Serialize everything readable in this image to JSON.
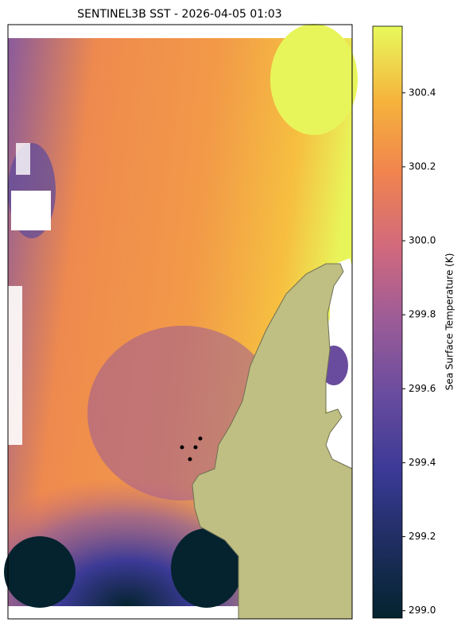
{
  "chart_data": {
    "type": "heatmap",
    "title": "SENTINEL3B SST - 2026-04-05 01:03",
    "ylabel": "Sea Surface Temperature (K)",
    "ylim": [
      298.98,
      300.58
    ],
    "yticks": [
      {
        "value": 299.0,
        "label": "299.0"
      },
      {
        "value": 299.2,
        "label": "299.2"
      },
      {
        "value": 299.4,
        "label": "299.4"
      },
      {
        "value": 299.6,
        "label": "299.6"
      },
      {
        "value": 299.8,
        "label": "299.8"
      },
      {
        "value": 300.0,
        "label": "300.0"
      },
      {
        "value": 300.2,
        "label": "300.2"
      },
      {
        "value": 300.4,
        "label": "300.4"
      }
    ]
  }
}
